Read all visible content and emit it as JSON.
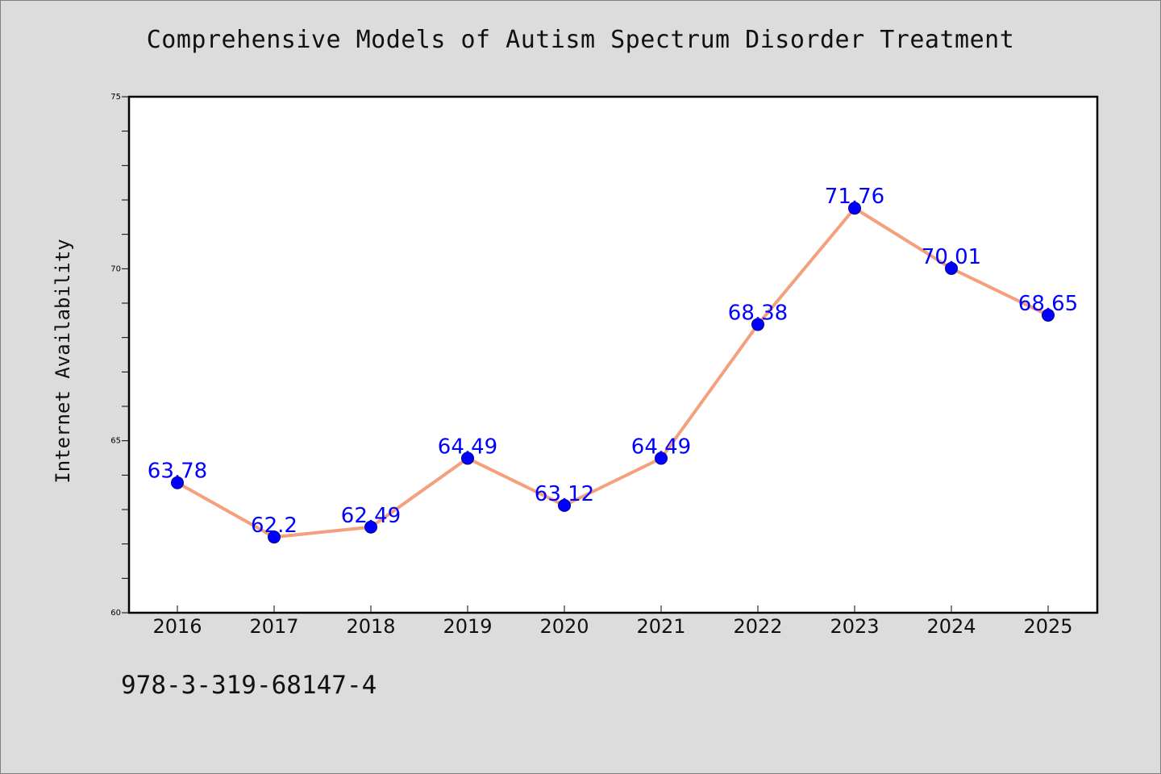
{
  "chart_data": {
    "type": "line",
    "title": "Comprehensive Models of Autism Spectrum Disorder Treatment",
    "ylabel": "Internet Availability",
    "xlabel": "",
    "categories": [
      "2016",
      "2017",
      "2018",
      "2019",
      "2020",
      "2021",
      "2022",
      "2023",
      "2024",
      "2025"
    ],
    "series": [
      {
        "values": [
          63.78,
          62.2,
          62.49,
          64.49,
          63.12,
          64.49,
          68.38,
          71.76,
          70.01,
          68.65
        ],
        "labels": [
          "63.78",
          "62.2",
          "62.49",
          "64.49",
          "63.12",
          "64.49",
          "68.38",
          "71.76",
          "70.01",
          "68.65"
        ],
        "line_color": "#f4a07c",
        "marker_color": "#0000ff"
      }
    ],
    "ylim": [
      60,
      75
    ],
    "yticks": [
      "60",
      "65",
      "70",
      "75"
    ],
    "grid": false,
    "legend": "none",
    "footer_text": "978-3-319-68147-4"
  }
}
